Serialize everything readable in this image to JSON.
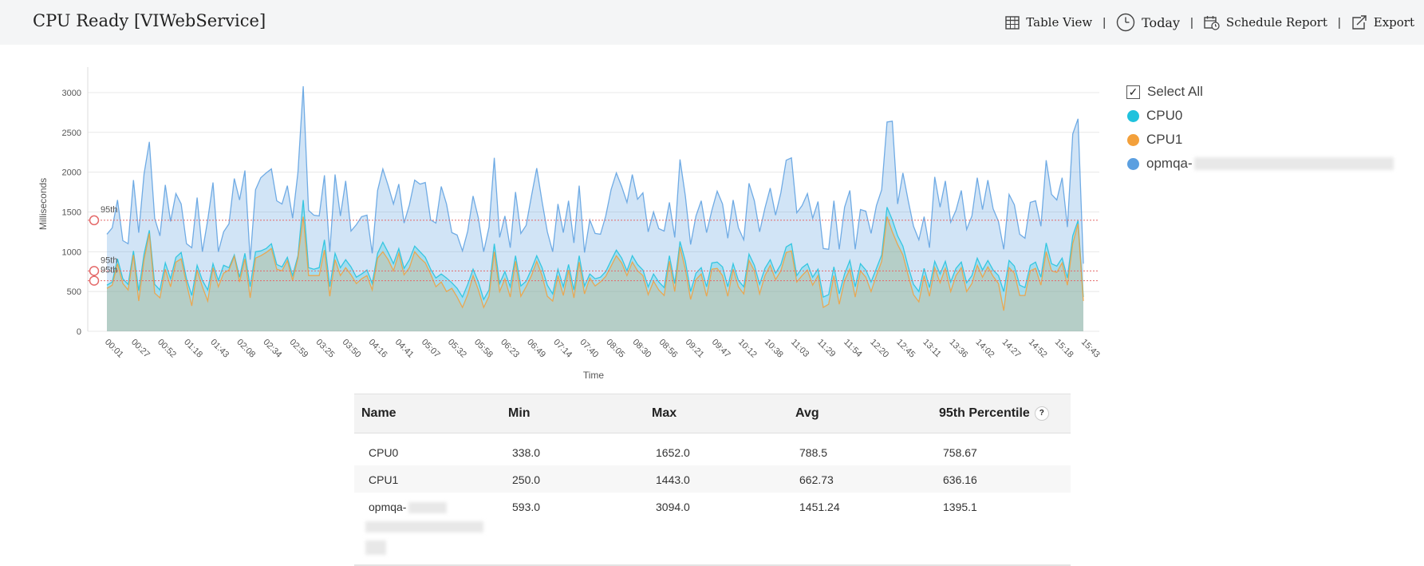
{
  "header": {
    "title": "CPU Ready [VIWebService]",
    "table_view": "Table View",
    "today": "Today",
    "schedule_report": "Schedule Report",
    "export": "Export",
    "separator": "|"
  },
  "legend": {
    "select_all": "Select All",
    "items": [
      {
        "label": "CPU0",
        "color": "#1fc2dd"
      },
      {
        "label": "CPU1",
        "color": "#f3a03b"
      },
      {
        "label": "opmqa-",
        "color": "#5b9fe0"
      }
    ]
  },
  "table": {
    "headers": [
      "Name",
      "Min",
      "Max",
      "Avg",
      "95th Percentile"
    ],
    "help": "?",
    "rows": [
      {
        "name": "CPU0",
        "min": "338.0",
        "max": "1652.0",
        "avg": "788.5",
        "p95": "758.67"
      },
      {
        "name": "CPU1",
        "min": "250.0",
        "max": "1443.0",
        "avg": "662.73",
        "p95": "636.16"
      },
      {
        "name": "opmqa-",
        "min": "593.0",
        "max": "3094.0",
        "avg": "1451.24",
        "p95": "1395.1"
      }
    ]
  },
  "chart_data": {
    "type": "area",
    "ylabel": "Milliseconds",
    "xlabel": "Time",
    "ylim": [
      0,
      3200
    ],
    "yticks": [
      0,
      500,
      1000,
      1500,
      2000,
      2500,
      3000
    ],
    "grid": true,
    "legend_position": "right",
    "x_tick_labels": [
      "00:01",
      "00:27",
      "00:52",
      "01:18",
      "01:43",
      "02:08",
      "02:34",
      "02:59",
      "03:25",
      "03:50",
      "04:16",
      "04:41",
      "05:07",
      "05:32",
      "05:58",
      "06:23",
      "06:49",
      "07:14",
      "07:40",
      "08:05",
      "08:30",
      "08:56",
      "09:21",
      "09:47",
      "10:12",
      "10:38",
      "11:03",
      "11:29",
      "11:54",
      "12:20",
      "12:45",
      "13:11",
      "13:36",
      "14:02",
      "14:27",
      "14:52",
      "15:18",
      "15:43"
    ],
    "percentile_lines": [
      {
        "series": "opmqa-",
        "label": "95th",
        "value": 1395.1
      },
      {
        "series": "CPU0",
        "label": "95th",
        "value": 758.67
      },
      {
        "series": "CPU1",
        "label": "95th",
        "value": 636.16
      }
    ],
    "series": [
      {
        "name": "opmqa-",
        "color": "#5b9fe0",
        "values": [
          1220,
          1300,
          1650,
          1140,
          1100,
          1900,
          1240,
          1980,
          2380,
          1420,
          1200,
          1840,
          1380,
          1730,
          1600,
          1100,
          1050,
          1680,
          1000,
          1400,
          1870,
          1000,
          1250,
          1350,
          1920,
          1650,
          2020,
          900,
          1780,
          1930,
          1990,
          2040,
          1640,
          1600,
          1830,
          1420,
          2000,
          3080,
          1520,
          1460,
          1450,
          1960,
          1000,
          1970,
          1450,
          1890,
          1260,
          1340,
          1440,
          1460,
          980,
          1770,
          2040,
          1830,
          1600,
          1850,
          1360,
          1590,
          1900,
          1850,
          1870,
          1400,
          1360,
          1820,
          1600,
          1240,
          1210,
          1010,
          1260,
          1700,
          1420,
          1000,
          1310,
          2180,
          1180,
          1450,
          1050,
          1750,
          1230,
          1330,
          1700,
          2050,
          1630,
          1250,
          1000,
          1600,
          1240,
          1640,
          1110,
          1830,
          990,
          1400,
          1230,
          1220,
          1450,
          1780,
          1990,
          1820,
          1620,
          1970,
          1660,
          1740,
          1250,
          1500,
          1290,
          1260,
          1620,
          1180,
          2160,
          1700,
          1090,
          1450,
          1640,
          1240,
          1520,
          1760,
          1600,
          1170,
          1650,
          1300,
          1150,
          1860,
          1640,
          1250,
          1550,
          1800,
          1460,
          1740,
          2150,
          2180,
          1490,
          1580,
          1730,
          1420,
          1630,
          1040,
          1030,
          1640,
          1030,
          1560,
          1770,
          1030,
          1530,
          1510,
          1230,
          1580,
          1780,
          2630,
          2640,
          1600,
          1990,
          1640,
          1320,
          1150,
          1440,
          1050,
          1940,
          1560,
          1890,
          1370,
          1520,
          1770,
          1280,
          1450,
          1930,
          1530,
          1900,
          1540,
          1380,
          1030,
          1720,
          1590,
          1220,
          1170,
          1620,
          1640,
          1320,
          2150,
          1720,
          1650,
          1930,
          1310,
          2480,
          2670,
          850
        ]
      },
      {
        "name": "CPU0",
        "color": "#1fc2dd",
        "values": [
          580,
          620,
          910,
          660,
          590,
          1010,
          510,
          970,
          1270,
          590,
          520,
          860,
          660,
          930,
          990,
          660,
          450,
          830,
          640,
          520,
          850,
          640,
          830,
          800,
          960,
          680,
          980,
          560,
          1000,
          1010,
          1040,
          1100,
          840,
          810,
          930,
          700,
          950,
          1650,
          800,
          780,
          800,
          1150,
          560,
          980,
          800,
          900,
          810,
          680,
          720,
          770,
          600,
          980,
          1120,
          990,
          850,
          1040,
          790,
          900,
          1070,
          1000,
          930,
          780,
          670,
          720,
          670,
          610,
          540,
          430,
          590,
          780,
          620,
          400,
          520,
          1100,
          600,
          750,
          560,
          950,
          570,
          630,
          780,
          950,
          800,
          580,
          470,
          780,
          560,
          840,
          520,
          950,
          570,
          720,
          660,
          680,
          750,
          890,
          1020,
          920,
          760,
          950,
          840,
          770,
          560,
          720,
          620,
          550,
          950,
          600,
          1130,
          880,
          500,
          730,
          800,
          560,
          860,
          870,
          810,
          560,
          850,
          640,
          560,
          970,
          830,
          590,
          790,
          900,
          730,
          840,
          1060,
          1100,
          700,
          800,
          850,
          680,
          780,
          430,
          460,
          810,
          470,
          720,
          890,
          560,
          850,
          770,
          620,
          790,
          960,
          1560,
          1400,
          1200,
          1070,
          810,
          590,
          500,
          790,
          550,
          880,
          720,
          880,
          620,
          790,
          870,
          610,
          700,
          920,
          770,
          890,
          770,
          700,
          500,
          890,
          820,
          580,
          550,
          830,
          870,
          680,
          1110,
          850,
          820,
          920,
          670,
          1200,
          1390,
          430
        ]
      },
      {
        "name": "CPU1",
        "color": "#f3a03b",
        "values": [
          540,
          580,
          850,
          600,
          520,
          960,
          380,
          900,
          1230,
          480,
          420,
          780,
          560,
          870,
          910,
          600,
          320,
          770,
          560,
          380,
          800,
          560,
          730,
          770,
          940,
          620,
          910,
          420,
          920,
          950,
          990,
          1040,
          780,
          760,
          890,
          640,
          920,
          1440,
          700,
          700,
          700,
          1020,
          440,
          900,
          700,
          800,
          710,
          600,
          660,
          700,
          520,
          920,
          1000,
          900,
          760,
          980,
          710,
          800,
          1000,
          920,
          860,
          720,
          560,
          620,
          500,
          540,
          430,
          300,
          460,
          700,
          520,
          300,
          440,
          1000,
          500,
          660,
          430,
          880,
          440,
          560,
          700,
          880,
          700,
          440,
          380,
          700,
          450,
          770,
          420,
          870,
          470,
          670,
          570,
          620,
          690,
          820,
          950,
          860,
          700,
          870,
          760,
          700,
          460,
          630,
          520,
          450,
          880,
          500,
          1060,
          780,
          400,
          650,
          720,
          440,
          780,
          790,
          700,
          440,
          780,
          560,
          470,
          890,
          760,
          470,
          700,
          830,
          650,
          760,
          990,
          1010,
          620,
          700,
          770,
          580,
          700,
          300,
          340,
          700,
          340,
          640,
          780,
          430,
          760,
          680,
          500,
          700,
          880,
          1440,
          1250,
          1090,
          960,
          700,
          460,
          370,
          700,
          440,
          800,
          610,
          790,
          500,
          700,
          800,
          500,
          600,
          830,
          680,
          810,
          690,
          600,
          260,
          800,
          730,
          450,
          450,
          760,
          790,
          580,
          1000,
          760,
          740,
          860,
          580,
          1100,
          1350,
          380
        ]
      }
    ]
  }
}
